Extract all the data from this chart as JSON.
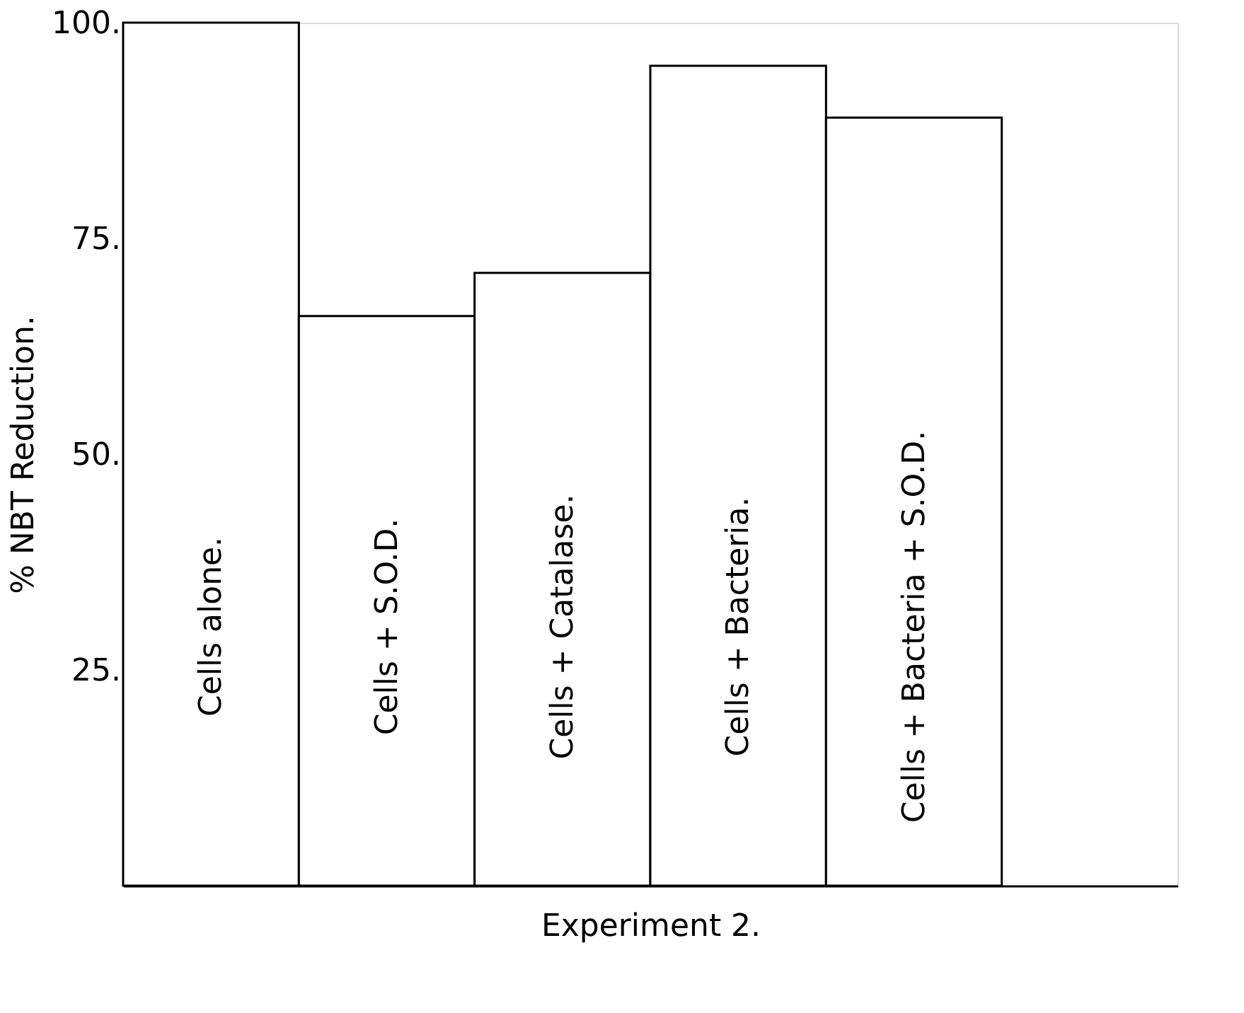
{
  "chart_data": {
    "type": "bar",
    "categories": [
      "Cells alone.",
      "Cells + S.O.D.",
      "Cells + Catalase.",
      "Cells + Bacteria.",
      "Cells + Bacteria + S.O.D."
    ],
    "values": [
      100,
      66,
      71,
      95,
      89
    ],
    "color": "#ffffff",
    "ylabel": "% NBT Reduction.",
    "xlabel": "Experiment 2.",
    "ylim": [
      0,
      100
    ],
    "yticks": [
      {
        "value": 25,
        "label": "25."
      },
      {
        "value": 50,
        "label": "50."
      },
      {
        "value": 75,
        "label": "75."
      },
      {
        "value": 100,
        "label": "100."
      }
    ],
    "tick_labels": "y",
    "grid": false
  }
}
